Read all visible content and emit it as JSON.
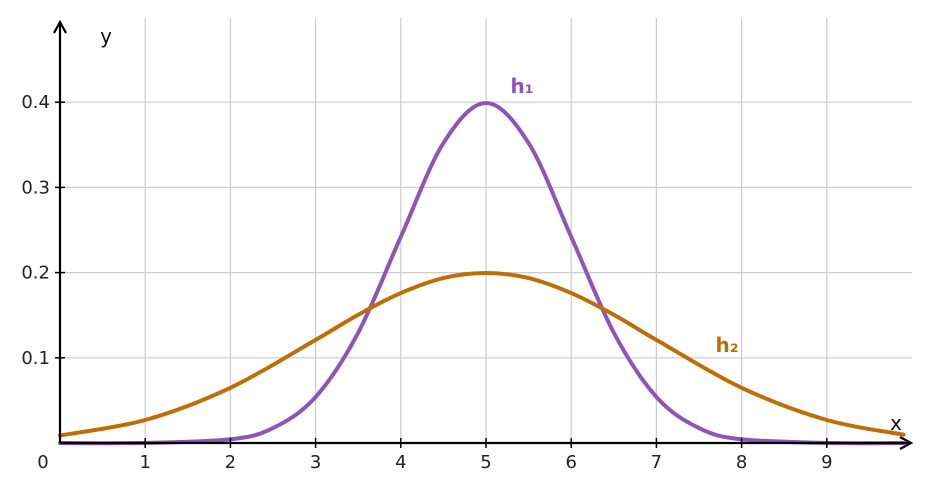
{
  "chart_data": {
    "type": "line",
    "xlabel": "x",
    "ylabel": "y",
    "xlim": [
      0,
      9.9
    ],
    "ylim": [
      0,
      0.45
    ],
    "x_ticks": [
      1,
      2,
      3,
      4,
      5,
      6,
      7,
      8,
      9
    ],
    "y_ticks": [
      0.1,
      0.2,
      0.3,
      0.4
    ],
    "y_tick_labels": [
      "0.1",
      "0.2",
      "0.3",
      "0.4"
    ],
    "origin_label": "0",
    "grid": true,
    "series": [
      {
        "name": "h₁",
        "color": "#8e55b6",
        "x": [
          0,
          1,
          2,
          2.5,
          3,
          3.5,
          4,
          4.5,
          5,
          5.5,
          6,
          6.5,
          7,
          7.5,
          8,
          9,
          9.9
        ],
        "y": [
          0,
          0.0001,
          0.0044,
          0.0175,
          0.054,
          0.1295,
          0.242,
          0.352,
          0.399,
          0.352,
          0.242,
          0.1295,
          0.054,
          0.0175,
          0.0044,
          0.0001,
          0
        ]
      },
      {
        "name": "h₂",
        "color": "#bf6e05",
        "x": [
          0,
          1,
          2,
          3,
          3.5,
          4,
          4.5,
          5,
          5.5,
          6,
          6.5,
          7,
          8,
          9,
          9.9
        ],
        "y": [
          0.0088,
          0.027,
          0.0648,
          0.121,
          0.1506,
          0.176,
          0.1936,
          0.1995,
          0.1936,
          0.176,
          0.1506,
          0.121,
          0.0648,
          0.027,
          0.0098
        ]
      }
    ]
  }
}
